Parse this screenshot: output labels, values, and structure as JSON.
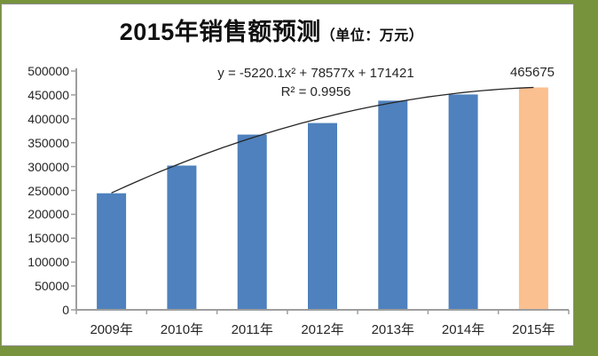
{
  "chart": {
    "title_main": "2015年销售额预测",
    "title_unit": "（单位：万元）",
    "annotation": {
      "equation": "y = -5220.1x² + 78577x + 171421",
      "r_squared": "R² = 0.9956"
    },
    "forecast_label": "465675"
  },
  "chart_data": {
    "type": "bar",
    "title": "2015年销售额预测（单位：万元）",
    "categories": [
      "2009年",
      "2010年",
      "2011年",
      "2012年",
      "2013年",
      "2014年",
      "2015年"
    ],
    "values": [
      244000,
      302000,
      367000,
      391000,
      438000,
      451000,
      465675
    ],
    "forecast_index": 6,
    "data_labels": {
      "2015年": "465675"
    },
    "trendline": {
      "type": "polynomial",
      "order": 2,
      "a": -5220.1,
      "b": 78577,
      "c": 171421,
      "equation": "y = -5220.1x² + 78577x + 171421",
      "r_squared": 0.9956
    },
    "xlabel": "",
    "ylabel": "",
    "ylim": [
      0,
      500000
    ],
    "y_tick_step": 50000,
    "y_tick_labels": [
      "0",
      "50000",
      "100000",
      "150000",
      "200000",
      "250000",
      "300000",
      "350000",
      "400000",
      "450000",
      "500000"
    ],
    "grid": false,
    "legend": false,
    "colors": {
      "bar": "#4E81BD",
      "forecast_bar": "#FAC090",
      "trendline": "#262626",
      "axis": "#9e9e9e",
      "text": "#262626",
      "frame": "#77933C",
      "background": "#FFFFFF"
    }
  }
}
